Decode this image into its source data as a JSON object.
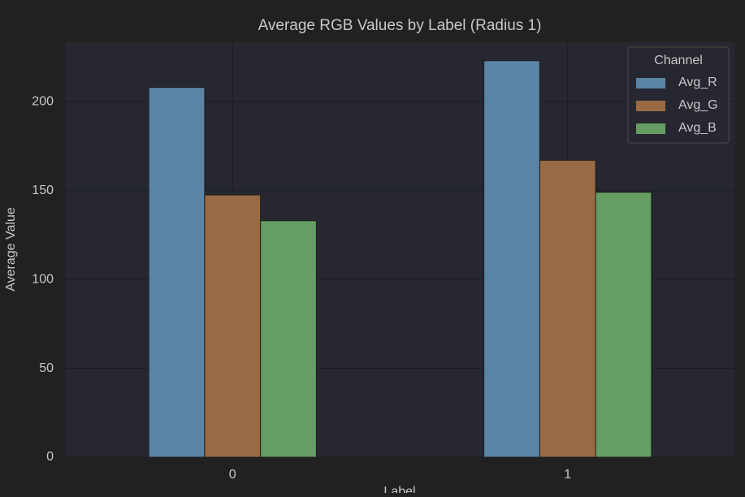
{
  "chart_data": {
    "type": "bar",
    "title": "Average RGB Values by Label (Radius 1)",
    "x_label": "Label",
    "y_label": "Average Value",
    "categories": [
      "0",
      "1"
    ],
    "series": [
      {
        "name": "Avg_R",
        "color": "#5b84a6",
        "values": [
          208,
          223
        ]
      },
      {
        "name": "Avg_G",
        "color": "#9a6a44",
        "values": [
          147.5,
          167
        ]
      },
      {
        "name": "Avg_B",
        "color": "#659d62",
        "values": [
          133,
          149
        ]
      }
    ],
    "ylim": [
      0,
      233.4
    ],
    "yticks": [
      0,
      50,
      100,
      150,
      200
    ],
    "grid": true,
    "legend_title": "Channel",
    "legend_position": "upper right"
  }
}
